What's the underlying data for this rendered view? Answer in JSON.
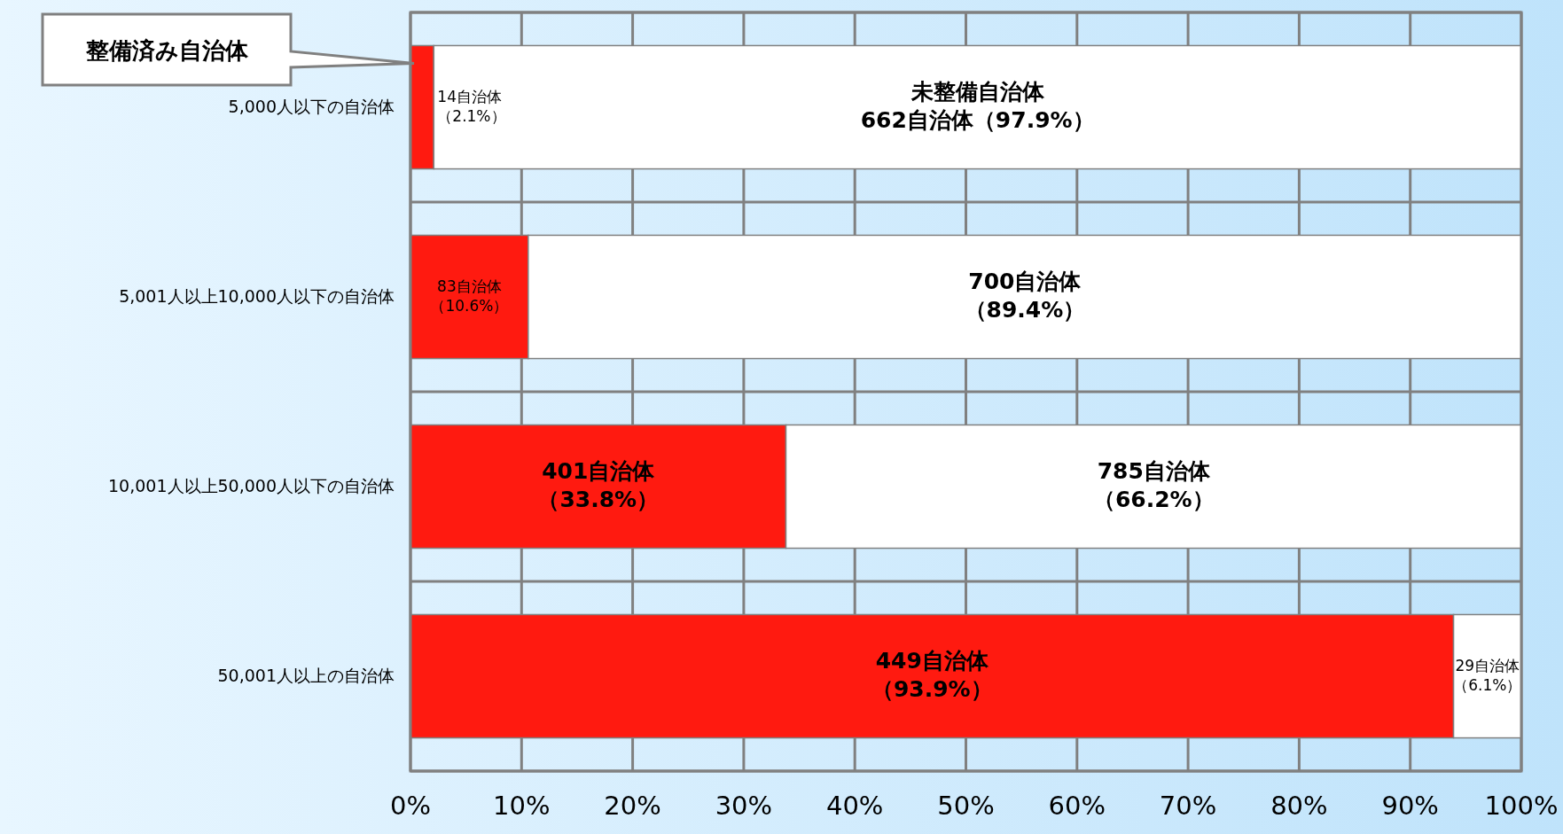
{
  "chart_data": {
    "type": "bar",
    "orientation": "horizontal",
    "stacked": true,
    "categories": [
      "5,000人以下の自治体",
      "5,001人以上10,000人以下の自治体",
      "10,001人以上50,000人以下の自治体",
      "50,001人以上の自治体"
    ],
    "series": [
      {
        "name": "整備済み自治体",
        "color": "#ff1a10",
        "values": [
          2.1,
          10.6,
          33.8,
          93.9
        ],
        "value_labels": [
          "14自治体（2.1%）",
          "83自治体（10.6%）",
          "401自治体（33.8%）",
          "449自治体（93.9%）"
        ]
      },
      {
        "name": "未整備自治体",
        "color": "#ffffff",
        "values": [
          97.9,
          89.4,
          66.2,
          6.1
        ],
        "value_labels": [
          "662自治体（97.9%）",
          "700自治体（89.4%）",
          "785自治体（66.2%）",
          "29自治体（6.1%）"
        ]
      }
    ],
    "xlim": [
      0,
      100
    ],
    "xticks": [
      {
        "value": 0,
        "label": "0%"
      },
      {
        "value": 10,
        "label": "10%"
      },
      {
        "value": 20,
        "label": "20%"
      },
      {
        "value": 30,
        "label": "30%"
      },
      {
        "value": 40,
        "label": "40%"
      },
      {
        "value": 50,
        "label": "50%"
      },
      {
        "value": 60,
        "label": "60%"
      },
      {
        "value": 70,
        "label": "70%"
      },
      {
        "value": 80,
        "label": "80%"
      },
      {
        "value": 90,
        "label": "90%"
      },
      {
        "value": 100,
        "label": "100%"
      }
    ],
    "grid": true,
    "legend": false
  }
}
